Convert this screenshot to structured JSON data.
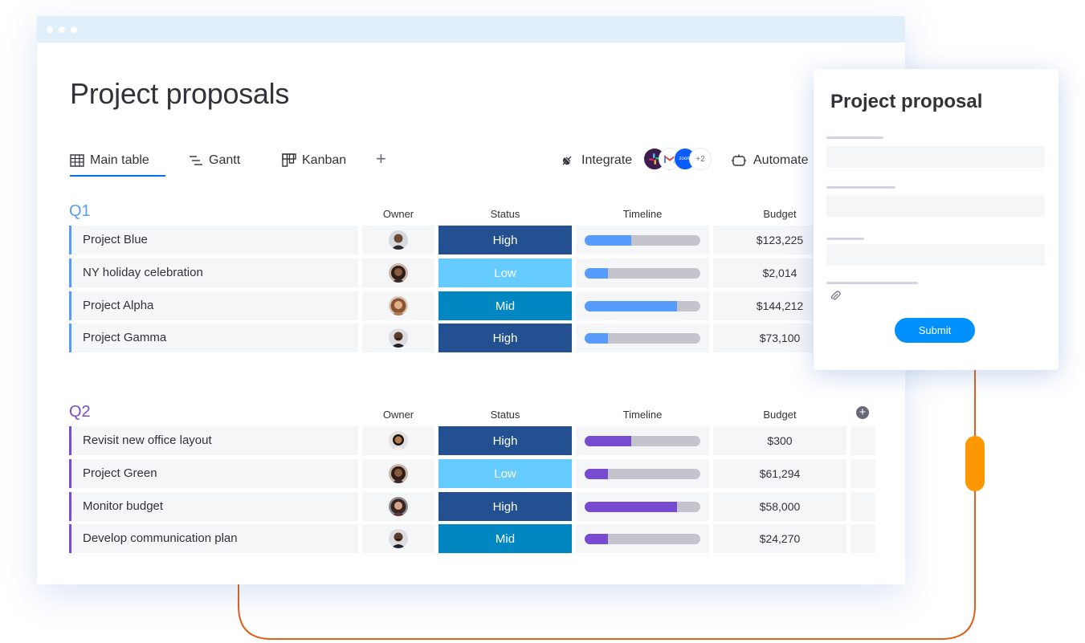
{
  "window": {
    "title": "Project proposals"
  },
  "tabs": [
    {
      "label": "Main table",
      "icon": "table-icon",
      "active": true
    },
    {
      "label": "Gantt",
      "icon": "gantt-icon",
      "active": false
    },
    {
      "label": "Kanban",
      "icon": "kanban-icon",
      "active": false
    }
  ],
  "add_tab_label": "+",
  "toolbar": {
    "integrate_label": "Integrate",
    "integration_icons": [
      "slack-icon",
      "gmail-icon",
      "zoom-icon"
    ],
    "zoom_text": "zoom",
    "more_count": "+2",
    "automate_label": "Automate"
  },
  "columns": {
    "owner": "Owner",
    "status": "Status",
    "timeline": "Timeline",
    "budget": "Budget"
  },
  "colors": {
    "q1": "#579bfc",
    "q2": "#784bd1",
    "high": "#225091",
    "low": "#66ccff",
    "mid": "#0086c0",
    "accent": "#0073ea",
    "connector": "#e2601b",
    "handle": "#fd9702"
  },
  "groups": [
    {
      "title": "Q1",
      "color": "#579bfc",
      "rows": [
        {
          "name": "Project Blue",
          "status": "High",
          "status_color": "#225091",
          "timeline_progress": 0.4,
          "budget": "$123,225"
        },
        {
          "name": "NY holiday celebration",
          "status": "Low",
          "status_color": "#66ccff",
          "timeline_progress": 0.2,
          "budget": "$2,014"
        },
        {
          "name": "Project Alpha",
          "status": "Mid",
          "status_color": "#0086c0",
          "timeline_progress": 0.8,
          "budget": "$144,212"
        },
        {
          "name": "Project Gamma",
          "status": "High",
          "status_color": "#225091",
          "timeline_progress": 0.2,
          "budget": "$73,100"
        }
      ]
    },
    {
      "title": "Q2",
      "color": "#784bd1",
      "rows": [
        {
          "name": "Revisit new office layout",
          "status": "High",
          "status_color": "#225091",
          "timeline_progress": 0.4,
          "budget": "$300"
        },
        {
          "name": "Project Green",
          "status": "Low",
          "status_color": "#66ccff",
          "timeline_progress": 0.2,
          "budget": "$61,294"
        },
        {
          "name": "Monitor budget",
          "status": "High",
          "status_color": "#225091",
          "timeline_progress": 0.8,
          "budget": "$58,000"
        },
        {
          "name": "Develop communication plan",
          "status": "Mid",
          "status_color": "#0086c0",
          "timeline_progress": 0.2,
          "budget": "$24,270"
        }
      ]
    }
  ],
  "form": {
    "title": "Project proposal",
    "attach_icon": "paperclip-icon",
    "submit_label": "Submit"
  }
}
